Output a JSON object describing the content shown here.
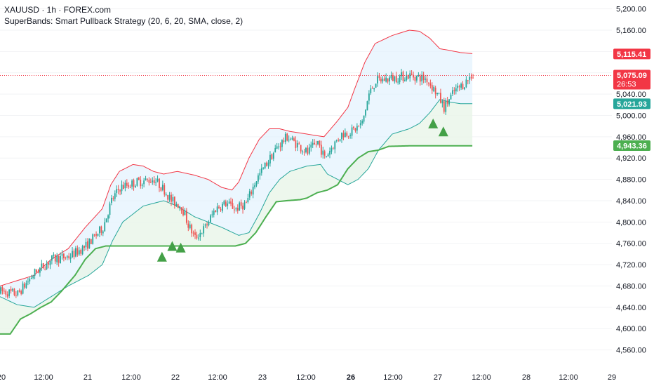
{
  "header": {
    "symbol_line": "XAUUSD · 1h · FOREX.com",
    "indicator_line": "SuperBands: Smart Pullback Strategy (20, 6, 20, SMA, close, 2)"
  },
  "colors": {
    "up": "#26a69a",
    "down": "#ef5350",
    "upper_band": "#f23645",
    "lower_band": "#26a69a",
    "support_line": "#4caf50",
    "signal": "#43a047",
    "fill_upper": "#e3f2fd",
    "fill_lower": "#e8f5e9",
    "current_price_line": "#f23645"
  },
  "chart_data": {
    "type": "candlestick",
    "y_axis": {
      "range": [
        4545,
        5210
      ],
      "ticks": [
        "5,200.00",
        "5,160.00",
        "5,120.00",
        "5,080.00",
        "5,040.00",
        "5,000.00",
        "4,960.00",
        "4,920.00",
        "4,880.00",
        "4,840.00",
        "4,800.00",
        "4,760.00",
        "4,720.00",
        "4,680.00",
        "4,640.00",
        "4,600.00",
        "4,560.00"
      ],
      "tick_values": [
        5200,
        5160,
        5120,
        5080,
        5040,
        5000,
        4960,
        4920,
        4880,
        4840,
        4800,
        4760,
        4720,
        4680,
        4640,
        4600,
        4560
      ]
    },
    "x_axis": {
      "ticks": [
        "20",
        "12:00",
        "21",
        "12:00",
        "22",
        "12:00",
        "23",
        "12:00",
        "26",
        "12:00",
        "27",
        "12:00",
        "28",
        "12:00",
        "29"
      ],
      "bold_ticks": [
        "26"
      ]
    },
    "series_anchors": {
      "price_close": [
        [
          0,
          4670
        ],
        [
          10,
          4665
        ],
        [
          20,
          4705
        ],
        [
          30,
          4730
        ],
        [
          40,
          4735
        ],
        [
          50,
          4755
        ],
        [
          60,
          4790
        ],
        [
          65,
          4840
        ],
        [
          70,
          4865
        ],
        [
          80,
          4875
        ],
        [
          90,
          4880
        ],
        [
          96,
          4860
        ],
        [
          100,
          4840
        ],
        [
          106,
          4830
        ],
        [
          110,
          4795
        ],
        [
          114,
          4770
        ],
        [
          120,
          4790
        ],
        [
          126,
          4825
        ],
        [
          132,
          4835
        ],
        [
          138,
          4825
        ],
        [
          144,
          4835
        ],
        [
          150,
          4880
        ],
        [
          156,
          4910
        ],
        [
          162,
          4940
        ],
        [
          168,
          4960
        ],
        [
          174,
          4945
        ],
        [
          180,
          4930
        ],
        [
          186,
          4950
        ],
        [
          190,
          4920
        ],
        [
          194,
          4940
        ],
        [
          200,
          4965
        ],
        [
          206,
          4970
        ],
        [
          212,
          4985
        ],
        [
          216,
          5040
        ],
        [
          220,
          5065
        ],
        [
          230,
          5070
        ],
        [
          240,
          5075
        ],
        [
          250,
          5068
        ],
        [
          256,
          5040
        ],
        [
          260,
          5015
        ],
        [
          266,
          5045
        ],
        [
          272,
          5060
        ],
        [
          276,
          5075
        ]
      ],
      "upper_band": [
        [
          0,
          4680
        ],
        [
          10,
          4690
        ],
        [
          20,
          4700
        ],
        [
          30,
          4730
        ],
        [
          40,
          4750
        ],
        [
          50,
          4790
        ],
        [
          60,
          4825
        ],
        [
          65,
          4870
        ],
        [
          70,
          4895
        ],
        [
          78,
          4908
        ],
        [
          84,
          4905
        ],
        [
          90,
          4895
        ],
        [
          96,
          4890
        ],
        [
          104,
          4895
        ],
        [
          114,
          4888
        ],
        [
          122,
          4880
        ],
        [
          130,
          4865
        ],
        [
          136,
          4860
        ],
        [
          140,
          4875
        ],
        [
          146,
          4920
        ],
        [
          152,
          4955
        ],
        [
          158,
          4975
        ],
        [
          164,
          4975
        ],
        [
          170,
          4970
        ],
        [
          180,
          4965
        ],
        [
          190,
          4960
        ],
        [
          198,
          4990
        ],
        [
          204,
          5015
        ],
        [
          208,
          5050
        ],
        [
          214,
          5100
        ],
        [
          220,
          5135
        ],
        [
          230,
          5150
        ],
        [
          240,
          5160
        ],
        [
          246,
          5158
        ],
        [
          252,
          5145
        ],
        [
          258,
          5125
        ],
        [
          262,
          5123
        ],
        [
          270,
          5118
        ],
        [
          277,
          5116
        ]
      ],
      "lower_band": [
        [
          0,
          4660
        ],
        [
          10,
          4645
        ],
        [
          20,
          4640
        ],
        [
          30,
          4660
        ],
        [
          40,
          4680
        ],
        [
          46,
          4690
        ],
        [
          52,
          4700
        ],
        [
          60,
          4720
        ],
        [
          66,
          4765
        ],
        [
          72,
          4800
        ],
        [
          78,
          4815
        ],
        [
          84,
          4830
        ],
        [
          90,
          4835
        ],
        [
          96,
          4840
        ],
        [
          104,
          4830
        ],
        [
          114,
          4810
        ],
        [
          122,
          4800
        ],
        [
          130,
          4790
        ],
        [
          140,
          4775
        ],
        [
          146,
          4780
        ],
        [
          152,
          4815
        ],
        [
          158,
          4855
        ],
        [
          164,
          4880
        ],
        [
          170,
          4895
        ],
        [
          180,
          4905
        ],
        [
          188,
          4908
        ],
        [
          192,
          4890
        ],
        [
          198,
          4880
        ],
        [
          204,
          4870
        ],
        [
          210,
          4880
        ],
        [
          216,
          4900
        ],
        [
          222,
          4935
        ],
        [
          230,
          4965
        ],
        [
          240,
          4975
        ],
        [
          246,
          4985
        ],
        [
          252,
          5005
        ],
        [
          258,
          5030
        ],
        [
          264,
          5025
        ],
        [
          270,
          5022
        ],
        [
          277,
          5022
        ]
      ],
      "support": [
        [
          0,
          4590
        ],
        [
          6,
          4590
        ],
        [
          12,
          4618
        ],
        [
          18,
          4628
        ],
        [
          24,
          4640
        ],
        [
          30,
          4650
        ],
        [
          36,
          4670
        ],
        [
          44,
          4700
        ],
        [
          50,
          4730
        ],
        [
          56,
          4750
        ],
        [
          62,
          4755
        ],
        [
          116,
          4755
        ],
        [
          130,
          4755
        ],
        [
          138,
          4755
        ],
        [
          144,
          4760
        ],
        [
          150,
          4780
        ],
        [
          156,
          4810
        ],
        [
          162,
          4838
        ],
        [
          168,
          4840
        ],
        [
          176,
          4842
        ],
        [
          180,
          4845
        ],
        [
          186,
          4855
        ],
        [
          192,
          4860
        ],
        [
          198,
          4870
        ],
        [
          204,
          4900
        ],
        [
          210,
          4920
        ],
        [
          216,
          4932
        ],
        [
          222,
          4935
        ],
        [
          228,
          4942
        ],
        [
          240,
          4943
        ],
        [
          277,
          4943
        ]
      ]
    },
    "signals": [
      {
        "index": 95,
        "price": 4735
      },
      {
        "index": 101,
        "price": 4755
      },
      {
        "index": 106,
        "price": 4752
      },
      {
        "index": 254,
        "price": 4985
      },
      {
        "index": 260,
        "price": 4970
      }
    ],
    "price_labels": [
      {
        "id": "upper",
        "value": 5115.41,
        "text": "5,115.41",
        "color": "#f23645"
      },
      {
        "id": "last",
        "value": 5075.09,
        "text": "5,075.09",
        "sub": "26:53",
        "color": "#f23645"
      },
      {
        "id": "lower",
        "value": 5021.93,
        "text": "5,021.93",
        "color": "#26a69a"
      },
      {
        "id": "support",
        "value": 4943.36,
        "text": "4,943.36",
        "color": "#4caf50"
      }
    ]
  }
}
